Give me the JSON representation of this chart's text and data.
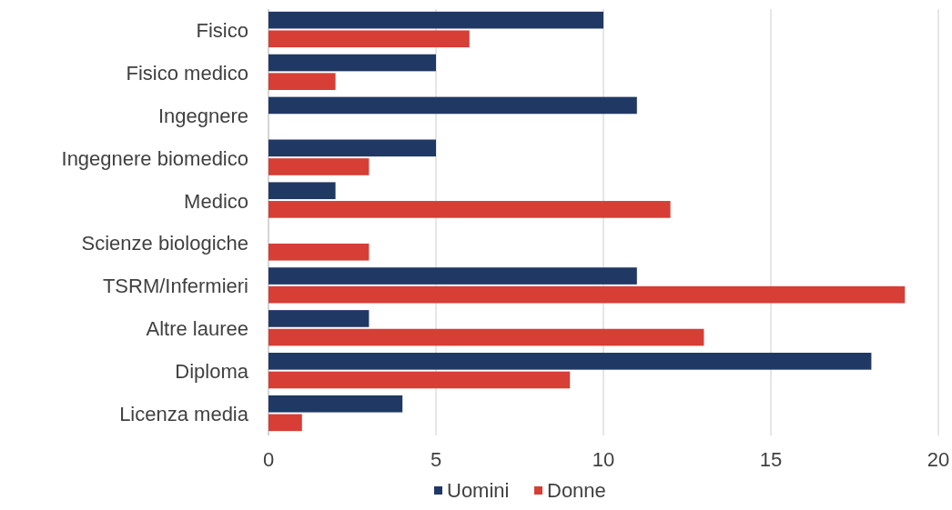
{
  "chart_data": {
    "type": "bar",
    "orientation": "horizontal",
    "categories": [
      "Fisico",
      "Fisico medico",
      "Ingegnere",
      "Ingegnere biomedico",
      "Medico",
      "Scienze biologiche",
      "TSRM/Infermieri",
      "Altre lauree",
      "Diploma",
      "Licenza media"
    ],
    "series": [
      {
        "name": "Uomini",
        "color": "#203864",
        "values": [
          10,
          5,
          11,
          5,
          2,
          0,
          11,
          3,
          18,
          4
        ]
      },
      {
        "name": "Donne",
        "color": "#d63e36",
        "values": [
          6,
          2,
          0,
          3,
          12,
          3,
          19,
          13,
          9,
          1
        ]
      }
    ],
    "xlim": [
      0,
      20
    ],
    "xticks": [
      0,
      5,
      10,
      15,
      20
    ],
    "grid": "x",
    "legend": "bottom"
  }
}
